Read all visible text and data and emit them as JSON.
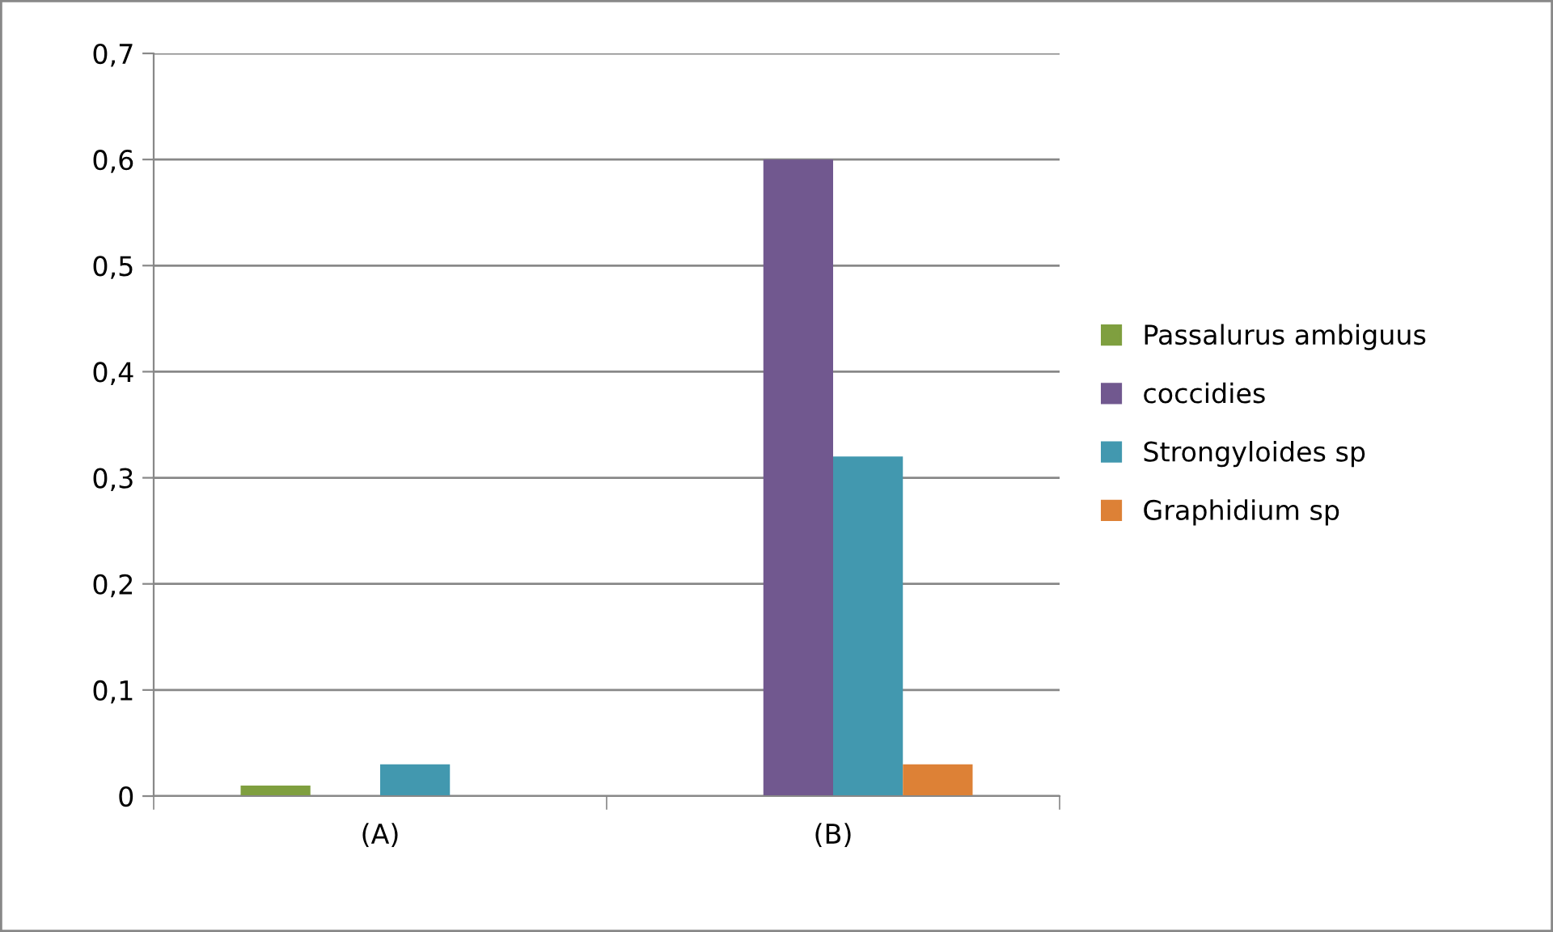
{
  "chart_data": {
    "type": "bar",
    "categories": [
      "(A)",
      "(B)"
    ],
    "series": [
      {
        "name": "Passalurus ambiguus",
        "color": "#7f9f3f",
        "values": [
          0.01,
          0
        ]
      },
      {
        "name": "coccidies",
        "color": "#71588f",
        "values": [
          0,
          0.6
        ]
      },
      {
        "name": "Strongyloides sp",
        "color": "#4298af",
        "values": [
          0.03,
          0.32
        ]
      },
      {
        "name": "Graphidium sp",
        "color": "#dd8136",
        "values": [
          0,
          0.03
        ]
      }
    ],
    "ylim": [
      0,
      0.7
    ],
    "yticks": [
      {
        "value": 0,
        "label": "0"
      },
      {
        "value": 0.1,
        "label": "0,1"
      },
      {
        "value": 0.2,
        "label": "0,2"
      },
      {
        "value": 0.3,
        "label": "0,3"
      },
      {
        "value": 0.4,
        "label": "0,4"
      },
      {
        "value": 0.5,
        "label": "0,5"
      },
      {
        "value": 0.6,
        "label": "0,6"
      },
      {
        "value": 0.7,
        "label": "0,7"
      }
    ],
    "grid": "y",
    "legend": "right"
  }
}
